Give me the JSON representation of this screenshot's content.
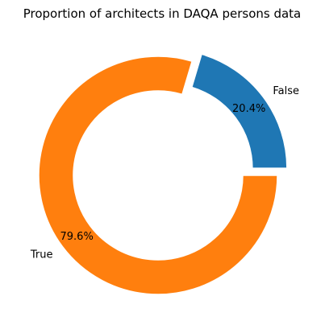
{
  "chart_data": {
    "type": "pie",
    "style": "donut",
    "title": "Proportion of architects in DAQA persons data",
    "categories": [
      "False",
      "True"
    ],
    "values": [
      20.4,
      79.6
    ],
    "percent_labels": [
      "20.4%",
      "79.6%"
    ],
    "colors": [
      "#1f77b4",
      "#ff7f0e"
    ],
    "start_angle_deg": 0,
    "explode": [
      0.1,
      0
    ],
    "legend": "none"
  }
}
